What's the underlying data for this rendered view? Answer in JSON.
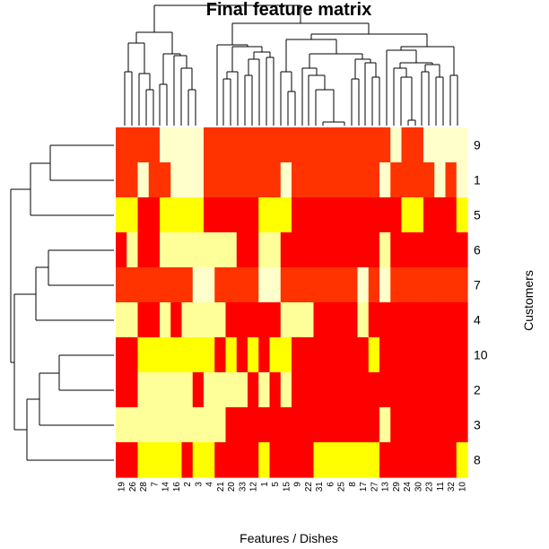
{
  "chart_data": {
    "type": "heatmap",
    "title": "Final feature matrix",
    "xlabel": "Features / Dishes",
    "ylabel": "Customers",
    "columns": [
      "19",
      "26",
      "28",
      "7",
      "14",
      "16",
      "2",
      "3",
      "4",
      "21",
      "20",
      "33",
      "12",
      "1",
      "5",
      "15",
      "9",
      "22",
      "31",
      "6",
      "25",
      "8",
      "17",
      "27",
      "13",
      "29",
      "24",
      "30",
      "23",
      "11",
      "32",
      "10"
    ],
    "rows": [
      "9",
      "1",
      "5",
      "6",
      "7",
      "4",
      "10",
      "2",
      "3",
      "8"
    ],
    "palette": [
      "#FF0000",
      "#FF3300",
      "#FFFF00",
      "#FFFF99",
      "#FFFFCC"
    ],
    "matrix": [
      [
        1,
        1,
        1,
        1,
        4,
        4,
        4,
        4,
        1,
        1,
        1,
        1,
        1,
        1,
        1,
        1,
        1,
        1,
        1,
        1,
        1,
        1,
        1,
        1,
        1,
        4,
        1,
        1,
        4,
        4,
        4,
        4
      ],
      [
        1,
        1,
        4,
        1,
        1,
        4,
        4,
        4,
        1,
        1,
        1,
        1,
        1,
        1,
        1,
        4,
        1,
        1,
        1,
        1,
        1,
        1,
        1,
        1,
        4,
        1,
        1,
        1,
        1,
        4,
        1,
        4
      ],
      [
        2,
        2,
        0,
        0,
        2,
        2,
        2,
        2,
        0,
        0,
        0,
        0,
        0,
        2,
        2,
        2,
        0,
        0,
        0,
        0,
        0,
        0,
        0,
        0,
        0,
        0,
        2,
        2,
        0,
        0,
        0,
        2
      ],
      [
        0,
        3,
        0,
        0,
        3,
        3,
        3,
        3,
        3,
        3,
        3,
        0,
        0,
        3,
        3,
        0,
        0,
        0,
        0,
        0,
        0,
        0,
        0,
        0,
        3,
        0,
        0,
        0,
        0,
        0,
        0,
        0
      ],
      [
        1,
        1,
        1,
        1,
        1,
        1,
        1,
        4,
        4,
        1,
        1,
        1,
        1,
        4,
        4,
        1,
        1,
        1,
        1,
        1,
        1,
        1,
        4,
        1,
        4,
        1,
        1,
        1,
        1,
        1,
        1,
        1
      ],
      [
        3,
        3,
        0,
        0,
        3,
        0,
        3,
        3,
        3,
        3,
        0,
        0,
        0,
        0,
        0,
        3,
        3,
        3,
        0,
        0,
        0,
        0,
        3,
        0,
        0,
        0,
        0,
        0,
        0,
        0,
        0,
        0
      ],
      [
        0,
        0,
        2,
        2,
        2,
        2,
        2,
        2,
        2,
        0,
        2,
        0,
        2,
        0,
        2,
        2,
        0,
        0,
        0,
        0,
        0,
        0,
        0,
        2,
        0,
        0,
        0,
        0,
        0,
        0,
        0,
        0
      ],
      [
        0,
        0,
        3,
        3,
        3,
        3,
        3,
        0,
        3,
        3,
        3,
        3,
        0,
        3,
        0,
        3,
        0,
        0,
        0,
        0,
        0,
        0,
        0,
        0,
        0,
        0,
        0,
        0,
        0,
        0,
        0,
        0
      ],
      [
        3,
        3,
        3,
        3,
        3,
        3,
        3,
        3,
        3,
        3,
        0,
        0,
        0,
        0,
        0,
        0,
        0,
        0,
        0,
        0,
        0,
        0,
        0,
        0,
        3,
        0,
        0,
        0,
        0,
        0,
        0,
        0
      ],
      [
        0,
        0,
        2,
        2,
        2,
        2,
        0,
        2,
        2,
        0,
        0,
        0,
        0,
        2,
        0,
        0,
        0,
        0,
        2,
        2,
        2,
        2,
        2,
        2,
        0,
        0,
        0,
        0,
        0,
        0,
        0,
        2
      ]
    ]
  }
}
